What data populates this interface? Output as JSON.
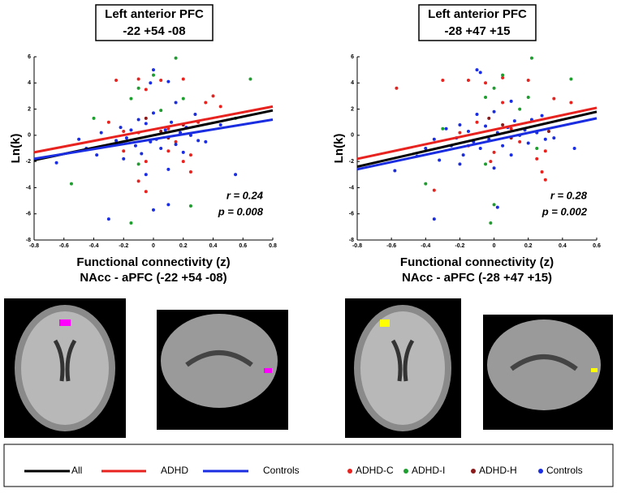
{
  "chart_data": [
    {
      "type": "scatter",
      "title": "Left anterior PFC",
      "subtitle": "-22 +54 -08",
      "x_label": [
        "Functional connectivity (z)",
        "NAcc - aPFC (-22 +54 -08)"
      ],
      "y_label": "Ln(k)",
      "annotations": [
        "r = 0.24",
        "p = 0.008"
      ],
      "xlim": [
        -0.8,
        0.8
      ],
      "xticks": [
        -0.8,
        -0.6,
        -0.4,
        -0.2,
        0,
        0.2,
        0.4,
        0.6,
        0.8
      ],
      "ylim": [
        -8,
        6
      ],
      "yticks": [
        -8,
        -6,
        -4,
        -2,
        0,
        2,
        4,
        6
      ],
      "series": [
        {
          "name": "ADHD-C",
          "type": "scatter",
          "color": "#e8231f",
          "x": [
            -0.25,
            -0.1,
            -0.05,
            0.05,
            0.2,
            0.35,
            0.4,
            0.45,
            -0.3,
            -0.2,
            -0.1,
            0.1,
            0.15,
            0.1,
            0.2,
            0.25,
            -0.05,
            -0.2,
            0.25,
            0.3,
            -0.1,
            -0.05
          ],
          "values": [
            4.2,
            4.3,
            3.5,
            4.2,
            4.3,
            2.5,
            3.0,
            2.2,
            1.0,
            0.3,
            0.2,
            0.5,
            -0.5,
            -1.2,
            -2.0,
            -1.5,
            -2.0,
            -1.2,
            -2.8,
            1.0,
            -3.5,
            -4.3
          ]
        },
        {
          "name": "ADHD-I",
          "type": "scatter",
          "color": "#1e9e2e",
          "x": [
            -0.4,
            -0.55,
            -0.15,
            -0.1,
            0.0,
            0.05,
            0.15,
            0.2,
            0.55,
            0.65,
            -0.15,
            0.25,
            -0.1
          ],
          "values": [
            1.3,
            -3.7,
            2.8,
            3.6,
            4.6,
            1.9,
            5.9,
            2.8,
            1.3,
            4.3,
            -6.7,
            -5.4,
            -2.2
          ]
        },
        {
          "name": "ADHD-H",
          "type": "scatter",
          "color": "#8b1a1a",
          "x": [
            0.05,
            0.2,
            -0.05,
            0.1
          ],
          "values": [
            0.3,
            0.8,
            1.3,
            -0.2
          ]
        },
        {
          "name": "Controls",
          "type": "scatter",
          "color": "#1a2de0",
          "x": [
            -0.65,
            -0.5,
            -0.45,
            -0.38,
            -0.35,
            -0.3,
            -0.25,
            -0.22,
            -0.2,
            -0.18,
            -0.15,
            -0.12,
            -0.1,
            -0.08,
            -0.05,
            -0.02,
            0.0,
            0.0,
            0.02,
            0.05,
            0.08,
            0.1,
            0.12,
            0.15,
            0.18,
            0.2,
            0.22,
            0.25,
            0.28,
            0.3,
            0.35,
            0.1,
            0.0,
            -0.3,
            0.45,
            0.55,
            -0.05,
            0.15,
            -0.02,
            0.1
          ],
          "values": [
            -2.1,
            -0.3,
            -1.0,
            -1.5,
            0.2,
            -0.8,
            -0.4,
            0.6,
            -1.8,
            -0.2,
            0.4,
            -0.8,
            1.2,
            -1.4,
            0.9,
            -0.5,
            5.0,
            1.7,
            -0.3,
            -1.0,
            0.4,
            -2.6,
            1.0,
            -0.7,
            0.2,
            -1.3,
            0.6,
            0.0,
            1.6,
            -0.4,
            -0.5,
            -5.3,
            -5.7,
            -6.4,
            0.8,
            -3.0,
            -3.0,
            2.5,
            4.0,
            4.1
          ]
        },
        {
          "name": "All",
          "type": "line",
          "color": "#000000",
          "x": [
            -0.8,
            0.8
          ],
          "values": [
            -1.9,
            1.9
          ]
        },
        {
          "name": "ADHD",
          "type": "line",
          "color": "#e8231f",
          "x": [
            -0.8,
            0.8
          ],
          "values": [
            -1.3,
            2.2
          ]
        },
        {
          "name": "Controls",
          "type": "line",
          "color": "#1a2de0",
          "x": [
            -0.8,
            0.8
          ],
          "values": [
            -1.8,
            1.2
          ]
        }
      ]
    },
    {
      "type": "scatter",
      "title": "Left anterior PFC",
      "subtitle": "-28 +47 +15",
      "x_label": [
        "Functional connectivity (z)",
        "NAcc - aPFC (-28 +47 +15)"
      ],
      "y_label": "Ln(k)",
      "annotations": [
        "r = 0.28",
        "p = 0.002"
      ],
      "xlim": [
        -0.8,
        0.6
      ],
      "xticks": [
        -0.8,
        -0.6,
        -0.4,
        -0.2,
        0,
        0.2,
        0.4,
        0.6
      ],
      "ylim": [
        -8,
        6
      ],
      "yticks": [
        -8,
        -6,
        -4,
        -2,
        0,
        2,
        4,
        6
      ],
      "series": [
        {
          "name": "ADHD-C",
          "type": "scatter",
          "color": "#e8231f",
          "x": [
            -0.57,
            -0.3,
            -0.15,
            -0.05,
            0.05,
            0.2,
            0.35,
            0.45,
            -0.35,
            -0.2,
            -0.1,
            0.1,
            0.15,
            0.0,
            0.25,
            0.3,
            -0.02,
            -0.15,
            0.28,
            0.05,
            0.3
          ],
          "values": [
            3.6,
            4.2,
            4.2,
            4.0,
            4.4,
            4.2,
            2.8,
            2.5,
            -4.2,
            0.2,
            1.0,
            0.5,
            -0.5,
            -1.3,
            -1.8,
            -1.2,
            -2.0,
            -0.8,
            -2.8,
            2.5,
            -3.4
          ]
        },
        {
          "name": "ADHD-I",
          "type": "scatter",
          "color": "#1e9e2e",
          "x": [
            -0.4,
            -0.3,
            -0.05,
            0.0,
            0.05,
            0.15,
            0.22,
            0.2,
            0.45,
            0.25,
            -0.02,
            0.0,
            -0.05
          ],
          "values": [
            -3.7,
            0.5,
            2.9,
            3.6,
            4.6,
            2.0,
            5.9,
            2.9,
            4.3,
            -1.0,
            -6.7,
            -5.3,
            -2.2
          ]
        },
        {
          "name": "ADHD-H",
          "type": "scatter",
          "color": "#8b1a1a",
          "x": [
            0.05,
            0.32,
            -0.03,
            0.1
          ],
          "values": [
            0.8,
            0.3,
            1.3,
            -0.2
          ]
        },
        {
          "name": "Controls",
          "type": "scatter",
          "color": "#1a2de0",
          "x": [
            -0.58,
            -0.45,
            -0.4,
            -0.35,
            -0.32,
            -0.28,
            -0.25,
            -0.22,
            -0.2,
            -0.18,
            -0.15,
            -0.12,
            -0.1,
            -0.08,
            -0.05,
            -0.03,
            -0.1,
            0.0,
            0.02,
            0.05,
            0.08,
            0.1,
            0.12,
            0.15,
            0.18,
            0.2,
            0.22,
            0.25,
            0.28,
            0.3,
            0.35,
            0.02,
            -0.35,
            0.47,
            -0.08,
            0.1,
            0.0,
            -0.2
          ],
          "values": [
            -2.7,
            -1.6,
            -1.0,
            -0.3,
            -1.9,
            0.5,
            -0.8,
            -0.2,
            0.8,
            -1.5,
            0.3,
            -0.5,
            1.6,
            -1.0,
            0.7,
            -0.3,
            5.0,
            1.8,
            0.2,
            -0.8,
            0.6,
            -1.5,
            1.1,
            0.0,
            0.4,
            -0.6,
            1.2,
            0.2,
            1.5,
            -0.3,
            -0.2,
            -5.5,
            -6.4,
            -1.0,
            4.8,
            2.6,
            -2.5,
            -2.2
          ]
        },
        {
          "name": "All",
          "type": "line",
          "color": "#000000",
          "x": [
            -0.8,
            0.6
          ],
          "values": [
            -2.4,
            1.8
          ]
        },
        {
          "name": "ADHD",
          "type": "line",
          "color": "#e8231f",
          "x": [
            -0.8,
            0.6
          ],
          "values": [
            -1.8,
            2.1
          ]
        },
        {
          "name": "Controls",
          "type": "line",
          "color": "#1a2de0",
          "x": [
            -0.8,
            0.6
          ],
          "values": [
            -2.6,
            1.3
          ]
        }
      ]
    }
  ]
}
